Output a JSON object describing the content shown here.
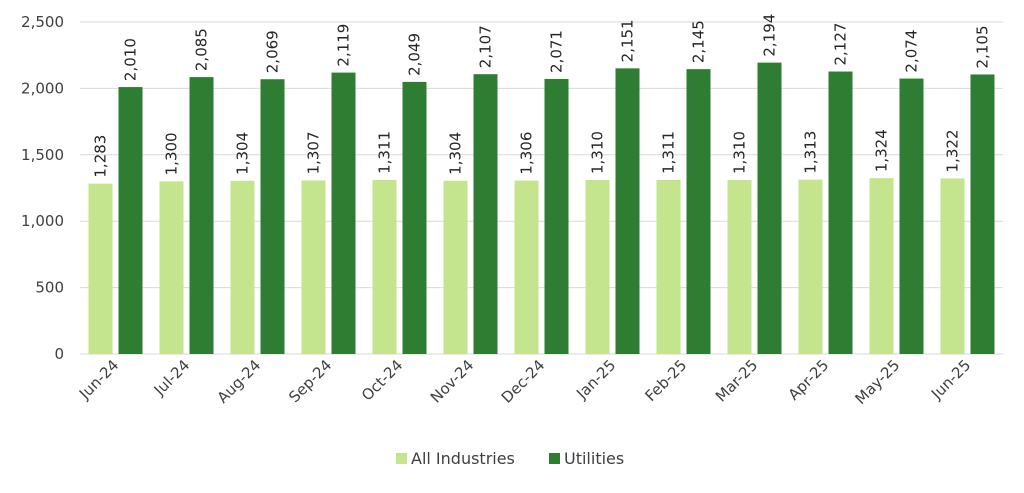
{
  "chart_data": {
    "type": "bar",
    "categories": [
      "Jun-24",
      "Jul-24",
      "Aug-24",
      "Sep-24",
      "Oct-24",
      "Nov-24",
      "Dec-24",
      "Jan-25",
      "Feb-25",
      "Mar-25",
      "Apr-25",
      "May-25",
      "Jun-25"
    ],
    "series": [
      {
        "name": "All Industries",
        "color": "#c5e48e",
        "values": [
          1283,
          1300,
          1304,
          1307,
          1311,
          1304,
          1306,
          1310,
          1311,
          1310,
          1313,
          1324,
          1322
        ],
        "labels": [
          "1,283",
          "1,300",
          "1,304",
          "1,307",
          "1,311",
          "1,304",
          "1,306",
          "1,310",
          "1,311",
          "1,310",
          "1,313",
          "1,324",
          "1,322"
        ]
      },
      {
        "name": "Utilities",
        "color": "#2e7d32",
        "values": [
          2010,
          2085,
          2069,
          2119,
          2049,
          2107,
          2071,
          2151,
          2145,
          2194,
          2127,
          2074,
          2105
        ],
        "labels": [
          "2,010",
          "2,085",
          "2,069",
          "2,119",
          "2,049",
          "2,107",
          "2,071",
          "2,151",
          "2,145",
          "2,194",
          "2,127",
          "2,074",
          "2,105"
        ]
      }
    ],
    "ylim": [
      0,
      2500
    ],
    "yticks": [
      0,
      500,
      1000,
      1500,
      2000,
      2500
    ],
    "ytick_labels": [
      "0",
      "500",
      "1,000",
      "1,500",
      "2,000",
      "2,500"
    ],
    "grid": true,
    "legend_position": "bottom",
    "gridline_color": "#d9d9d9",
    "title": "",
    "xlabel": "",
    "ylabel": ""
  }
}
